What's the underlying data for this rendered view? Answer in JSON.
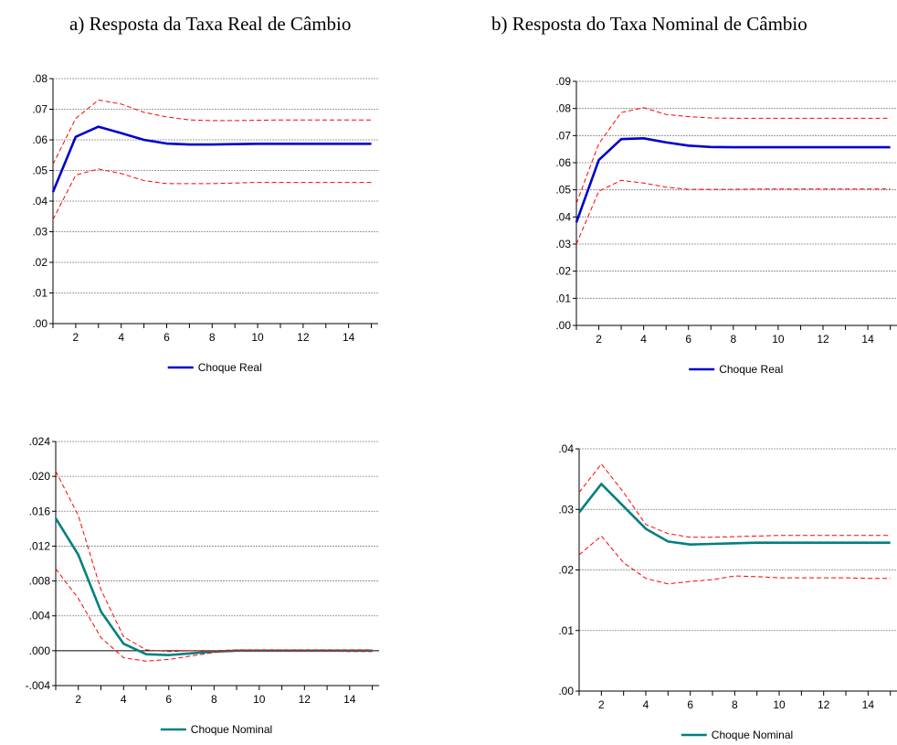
{
  "titles": {
    "a": "a) Resposta da Taxa Real de Câmbio",
    "b": "b) Resposta do Taxa Nominal de Câmbio"
  },
  "colors": {
    "blue": "#0000CC",
    "teal": "#008080",
    "band": "#FF0000",
    "grid": "#808080",
    "axis": "#000000"
  },
  "chart_data": [
    {
      "type": "line",
      "legend": "Choque Real",
      "legend_placement": "bottom-center",
      "grid": true,
      "x": [
        1,
        2,
        3,
        4,
        5,
        6,
        7,
        8,
        9,
        10,
        11,
        12,
        13,
        14,
        15
      ],
      "xticks": [
        2,
        4,
        6,
        8,
        10,
        12,
        14
      ],
      "ylim": [
        0,
        0.08
      ],
      "yticks": [
        0,
        0.01,
        0.02,
        0.03,
        0.04,
        0.05,
        0.06,
        0.07,
        0.08
      ],
      "ytick_labels": [
        ".00",
        ".01",
        ".02",
        ".03",
        ".04",
        ".05",
        ".06",
        ".07",
        ".08"
      ],
      "series": [
        {
          "name": "Choque Real",
          "role": "response",
          "color": "#0000CC",
          "values": [
            0.043,
            0.061,
            0.0643,
            0.0622,
            0.06,
            0.0588,
            0.0585,
            0.0585,
            0.0586,
            0.0587,
            0.0587,
            0.0587,
            0.0587,
            0.0587,
            0.0587
          ]
        },
        {
          "role": "upper",
          "color": "#FF0000",
          "values": [
            0.052,
            0.067,
            0.073,
            0.0717,
            0.069,
            0.0675,
            0.0665,
            0.0663,
            0.0663,
            0.0664,
            0.0665,
            0.0665,
            0.0665,
            0.0665,
            0.0665
          ]
        },
        {
          "role": "lower",
          "color": "#FF0000",
          "values": [
            0.034,
            0.0485,
            0.0505,
            0.049,
            0.0467,
            0.0457,
            0.0457,
            0.0457,
            0.0459,
            0.0461,
            0.0461,
            0.0461,
            0.0461,
            0.0461,
            0.0461
          ]
        }
      ]
    },
    {
      "type": "line",
      "legend": "Choque Real",
      "legend_placement": "bottom-center",
      "grid": true,
      "x": [
        1,
        2,
        3,
        4,
        5,
        6,
        7,
        8,
        9,
        10,
        11,
        12,
        13,
        14,
        15
      ],
      "xticks": [
        2,
        4,
        6,
        8,
        10,
        12,
        14
      ],
      "ylim": [
        0,
        0.09
      ],
      "yticks": [
        0,
        0.01,
        0.02,
        0.03,
        0.04,
        0.05,
        0.06,
        0.07,
        0.08,
        0.09
      ],
      "ytick_labels": [
        ".00",
        ".01",
        ".02",
        ".03",
        ".04",
        ".05",
        ".06",
        ".07",
        ".08",
        ".09"
      ],
      "series": [
        {
          "name": "Choque Real",
          "role": "response",
          "color": "#0000CC",
          "values": [
            0.038,
            0.061,
            0.0687,
            0.069,
            0.0675,
            0.0663,
            0.0658,
            0.0657,
            0.0657,
            0.0657,
            0.0657,
            0.0657,
            0.0657,
            0.0657,
            0.0657
          ]
        },
        {
          "role": "upper",
          "color": "#FF0000",
          "values": [
            0.045,
            0.067,
            0.0785,
            0.0803,
            0.0778,
            0.077,
            0.0765,
            0.0764,
            0.0764,
            0.0764,
            0.0764,
            0.0764,
            0.0764,
            0.0764,
            0.0764
          ]
        },
        {
          "role": "lower",
          "color": "#FF0000",
          "values": [
            0.03,
            0.0495,
            0.0535,
            0.0525,
            0.051,
            0.0502,
            0.0502,
            0.0502,
            0.0503,
            0.0503,
            0.0503,
            0.0503,
            0.0503,
            0.0503,
            0.0503
          ]
        }
      ]
    },
    {
      "type": "line",
      "legend": "Choque Nominal",
      "legend_placement": "bottom-center",
      "grid": true,
      "x": [
        1,
        2,
        3,
        4,
        5,
        6,
        7,
        8,
        9,
        10,
        11,
        12,
        13,
        14,
        15
      ],
      "xticks": [
        2,
        4,
        6,
        8,
        10,
        12,
        14
      ],
      "ylim": [
        -0.004,
        0.024
      ],
      "yticks": [
        -0.004,
        0,
        0.004,
        0.008,
        0.012,
        0.016,
        0.02,
        0.024
      ],
      "ytick_labels": [
        "-.004",
        ".000",
        ".004",
        ".008",
        ".012",
        ".016",
        ".020",
        ".024"
      ],
      "series": [
        {
          "name": "Choque Nominal",
          "role": "response",
          "color": "#008080",
          "values": [
            0.0152,
            0.011,
            0.0045,
            0.0008,
            -0.0004,
            -0.0005,
            -0.0003,
            -0.0001,
            0,
            0,
            0,
            0,
            0,
            0,
            0
          ]
        },
        {
          "role": "upper",
          "color": "#FF0000",
          "values": [
            0.0206,
            0.0155,
            0.007,
            0.0016,
            0.0001,
            -0.0001,
            0,
            0,
            0.0001,
            0.0001,
            0.0001,
            0.0001,
            0.0001,
            0.0001,
            0.0001
          ]
        },
        {
          "role": "lower",
          "color": "#FF0000",
          "values": [
            0.0094,
            0.006,
            0.0015,
            -0.0008,
            -0.0012,
            -0.001,
            -0.0006,
            -0.0002,
            0,
            0,
            0,
            0,
            0,
            -0.0001,
            -0.0001
          ]
        }
      ]
    },
    {
      "type": "line",
      "legend": "Choque Nominal",
      "legend_placement": "bottom-center",
      "grid": true,
      "x": [
        1,
        2,
        3,
        4,
        5,
        6,
        7,
        8,
        9,
        10,
        11,
        12,
        13,
        14,
        15
      ],
      "xticks": [
        2,
        4,
        6,
        8,
        10,
        12,
        14
      ],
      "ylim": [
        0,
        0.04
      ],
      "yticks": [
        0,
        0.01,
        0.02,
        0.03,
        0.04
      ],
      "ytick_labels": [
        ".00",
        ".01",
        ".02",
        ".03",
        ".04"
      ],
      "series": [
        {
          "name": "Choque Nominal",
          "role": "response",
          "color": "#008080",
          "values": [
            0.0295,
            0.0342,
            0.0305,
            0.0268,
            0.0247,
            0.0242,
            0.0243,
            0.0244,
            0.0245,
            0.0245,
            0.0245,
            0.0245,
            0.0245,
            0.0245,
            0.0245
          ]
        },
        {
          "role": "upper",
          "color": "#FF0000",
          "values": [
            0.0328,
            0.0375,
            0.0328,
            0.0275,
            0.026,
            0.0254,
            0.0254,
            0.0255,
            0.0256,
            0.0257,
            0.0257,
            0.0257,
            0.0257,
            0.0257,
            0.0257
          ]
        },
        {
          "role": "lower",
          "color": "#FF0000",
          "values": [
            0.0225,
            0.0256,
            0.0212,
            0.0186,
            0.0177,
            0.0181,
            0.0184,
            0.019,
            0.0189,
            0.0187,
            0.0187,
            0.0187,
            0.0187,
            0.0186,
            0.0186
          ]
        }
      ]
    }
  ]
}
